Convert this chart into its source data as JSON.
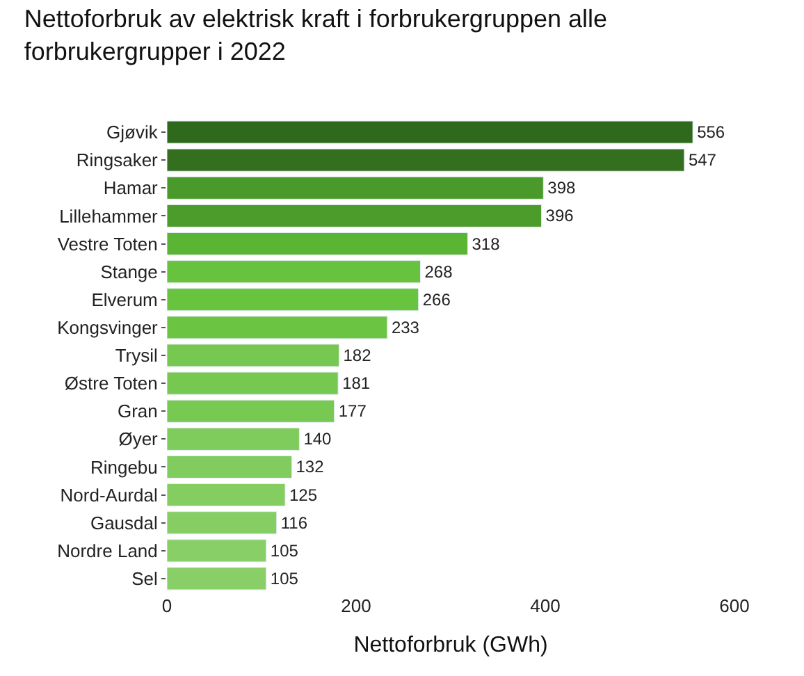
{
  "chart_data": {
    "type": "bar",
    "orientation": "horizontal",
    "title": "Nettoforbruk av elektrisk kraft i forbrukergruppen alle forbrukergrupper i 2022",
    "xlabel": "Nettoforbruk (GWh)",
    "categories": [
      "Gjøvik",
      "Ringsaker",
      "Hamar",
      "Lillehammer",
      "Vestre Toten",
      "Stange",
      "Elverum",
      "Kongsvinger",
      "Trysil",
      "Østre Toten",
      "Gran",
      "Øyer",
      "Ringebu",
      "Nord-Aurdal",
      "Gausdal",
      "Nordre Land",
      "Sel"
    ],
    "values": [
      556,
      547,
      398,
      396,
      318,
      268,
      266,
      233,
      182,
      181,
      177,
      140,
      132,
      125,
      116,
      105,
      105
    ],
    "colors": [
      "#2f6a1c",
      "#336f1e",
      "#4a9a2b",
      "#4c9c2c",
      "#5bb534",
      "#67c23e",
      "#68c33f",
      "#6cc443",
      "#76c850",
      "#77c851",
      "#78c952",
      "#7fcb5c",
      "#81cc5e",
      "#83cd61",
      "#86ce64",
      "#88cf67",
      "#88cf67"
    ],
    "xlim": [
      0,
      600
    ],
    "xticks": [
      0,
      200,
      400,
      600
    ],
    "data_labels": true,
    "legend": false
  }
}
